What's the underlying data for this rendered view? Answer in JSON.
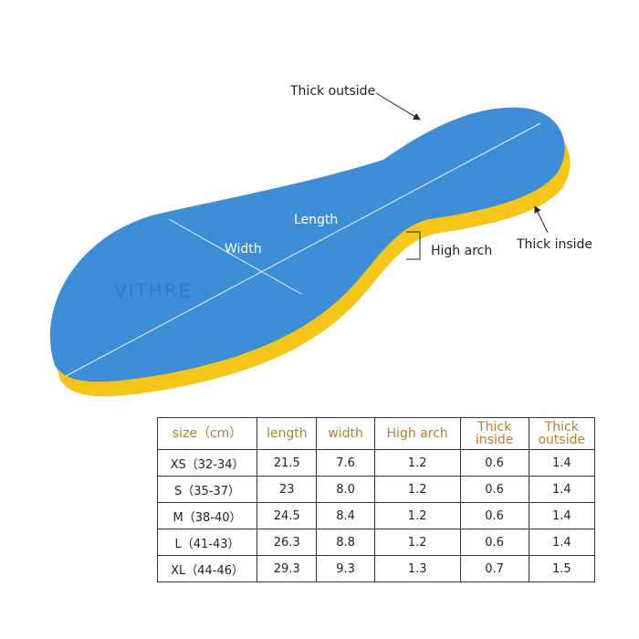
{
  "annotations": {
    "thick_outside": "Thick outside",
    "thick_inside": "Thick inside",
    "length": "Length",
    "width": "Width",
    "high_arch": "High arch",
    "logo": "VITHRE"
  },
  "table": {
    "header": [
      "size（cm）",
      "length",
      "width",
      "High arch",
      "Thick inside",
      "Thick outside"
    ],
    "rows": [
      [
        "XS（32-34）",
        "21.5",
        "7.6",
        "1.2",
        "0.6",
        "1.4"
      ],
      [
        "S（35-37）",
        "23",
        "8.0",
        "1.2",
        "0.6",
        "1.4"
      ],
      [
        "M（38-40）",
        "24.5",
        "8.4",
        "1.2",
        "0.6",
        "1.4"
      ],
      [
        "L（41-43）",
        "26.3",
        "8.8",
        "1.2",
        "0.6",
        "1.4"
      ],
      [
        "XL（44-46）",
        "29.3",
        "9.3",
        "1.3",
        "0.7",
        "1.5"
      ]
    ]
  }
}
